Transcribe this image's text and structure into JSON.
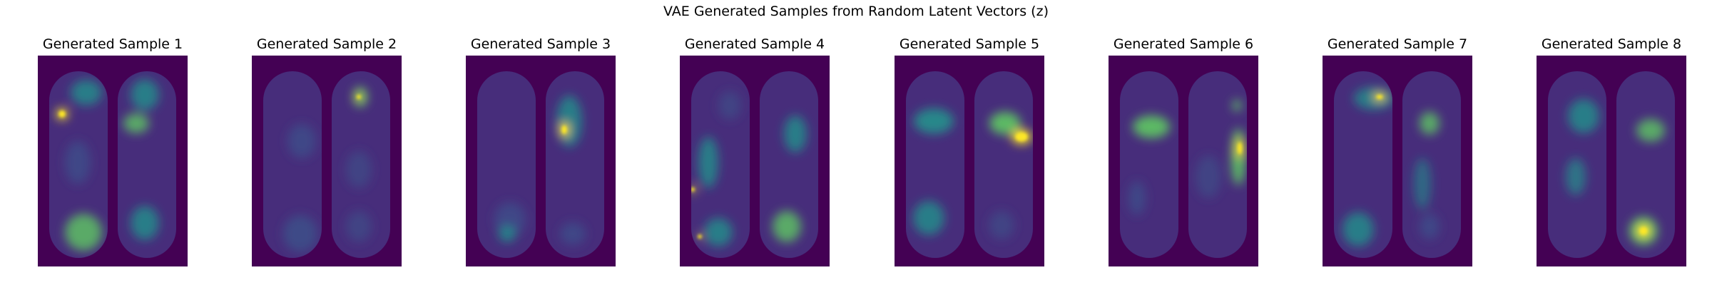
{
  "figure": {
    "title": "VAE Generated Samples from Random Latent Vectors (z)"
  },
  "colors": {
    "background": "#440154",
    "foot_base": "#472d7b",
    "mid": "#3b528b",
    "teal": "#21918c",
    "green": "#5ec962",
    "yellow": "#fde725"
  },
  "samples": [
    {
      "title": "Generated Sample 1",
      "image": "pressure-heatmap-feet"
    },
    {
      "title": "Generated Sample 2",
      "image": "pressure-heatmap-feet"
    },
    {
      "title": "Generated Sample 3",
      "image": "pressure-heatmap-feet"
    },
    {
      "title": "Generated Sample 4",
      "image": "pressure-heatmap-feet"
    },
    {
      "title": "Generated Sample 5",
      "image": "pressure-heatmap-feet"
    },
    {
      "title": "Generated Sample 6",
      "image": "pressure-heatmap-feet"
    },
    {
      "title": "Generated Sample 7",
      "image": "pressure-heatmap-feet"
    },
    {
      "title": "Generated Sample 8",
      "image": "pressure-heatmap-feet"
    }
  ]
}
